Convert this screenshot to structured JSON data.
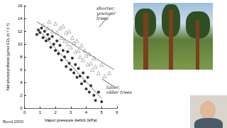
{
  "chart_data": {
    "type": "scatter",
    "x_label": "Vapor pressure deficit (kPa)",
    "y_label": "Net photosynthesis (μmol CO₂ m⁻² s⁻¹)",
    "xlim": [
      0,
      6
    ],
    "xticks": [
      0,
      1,
      2,
      3,
      4,
      5,
      6
    ],
    "ylim": [
      0,
      16
    ],
    "yticks": [
      0,
      2,
      4,
      6,
      8,
      10,
      12,
      14,
      16
    ],
    "grid": false,
    "annotations": [
      "shorter, younger trees",
      "taller, older trees"
    ],
    "source": "Bond 2000",
    "series": [
      {
        "type": "scatter",
        "marker": "circle",
        "color": "#000000",
        "x": [
          0.8,
          0.9,
          1.0,
          1.1,
          1.2,
          1.3,
          1.4,
          1.5,
          1.6,
          1.7,
          1.8,
          1.9,
          2.0,
          2.1,
          2.2,
          2.3,
          2.4,
          2.5,
          2.6,
          2.7,
          2.8,
          2.9,
          3.0,
          3.1,
          3.2,
          3.3,
          3.4,
          3.5,
          3.6,
          3.7,
          3.8,
          3.9,
          4.0,
          4.1,
          4.2,
          4.3,
          4.5,
          4.6,
          4.8,
          5.0
        ],
        "values": [
          11.5,
          12.2,
          11.8,
          12.5,
          11.0,
          12.0,
          10.5,
          11.5,
          10.8,
          9.5,
          11.2,
          10.0,
          9.0,
          10.5,
          8.5,
          9.8,
          7.5,
          9.0,
          8.0,
          6.5,
          8.8,
          7.0,
          6.0,
          7.8,
          5.5,
          6.8,
          4.8,
          6.2,
          5.0,
          3.8,
          5.5,
          4.2,
          3.0,
          4.8,
          2.5,
          3.5,
          2.0,
          1.2,
          2.5,
          1.0
        ]
      },
      {
        "type": "scatter",
        "marker": "triangle",
        "color": "#808080",
        "x": [
          1.2,
          1.5,
          1.6,
          1.8,
          2.0,
          2.1,
          2.3,
          2.4,
          2.5,
          2.6,
          2.7,
          2.8,
          2.9,
          3.0,
          3.1,
          3.2,
          3.3,
          3.4,
          3.5,
          3.6,
          3.7,
          3.8,
          3.9,
          4.0,
          4.1,
          4.2,
          4.3,
          4.4,
          4.5,
          4.6,
          4.8,
          5.0,
          5.2,
          5.5
        ],
        "values": [
          13.0,
          12.5,
          13.5,
          12.0,
          13.2,
          11.8,
          12.5,
          11.0,
          12.8,
          10.5,
          11.8,
          10.0,
          12.0,
          9.5,
          11.0,
          10.2,
          8.8,
          10.5,
          9.0,
          8.0,
          9.8,
          7.5,
          9.0,
          8.2,
          6.8,
          8.5,
          7.0,
          6.0,
          7.8,
          6.5,
          5.5,
          6.8,
          5.0,
          5.5
        ]
      },
      {
        "type": "line",
        "color": "#555555",
        "x": [
          0.8,
          5.8
        ],
        "values": [
          13.5,
          6.0
        ]
      },
      {
        "type": "line",
        "color": "#555555",
        "x": [
          0.8,
          5.0
        ],
        "values": [
          12.5,
          1.5
        ]
      }
    ]
  }
}
